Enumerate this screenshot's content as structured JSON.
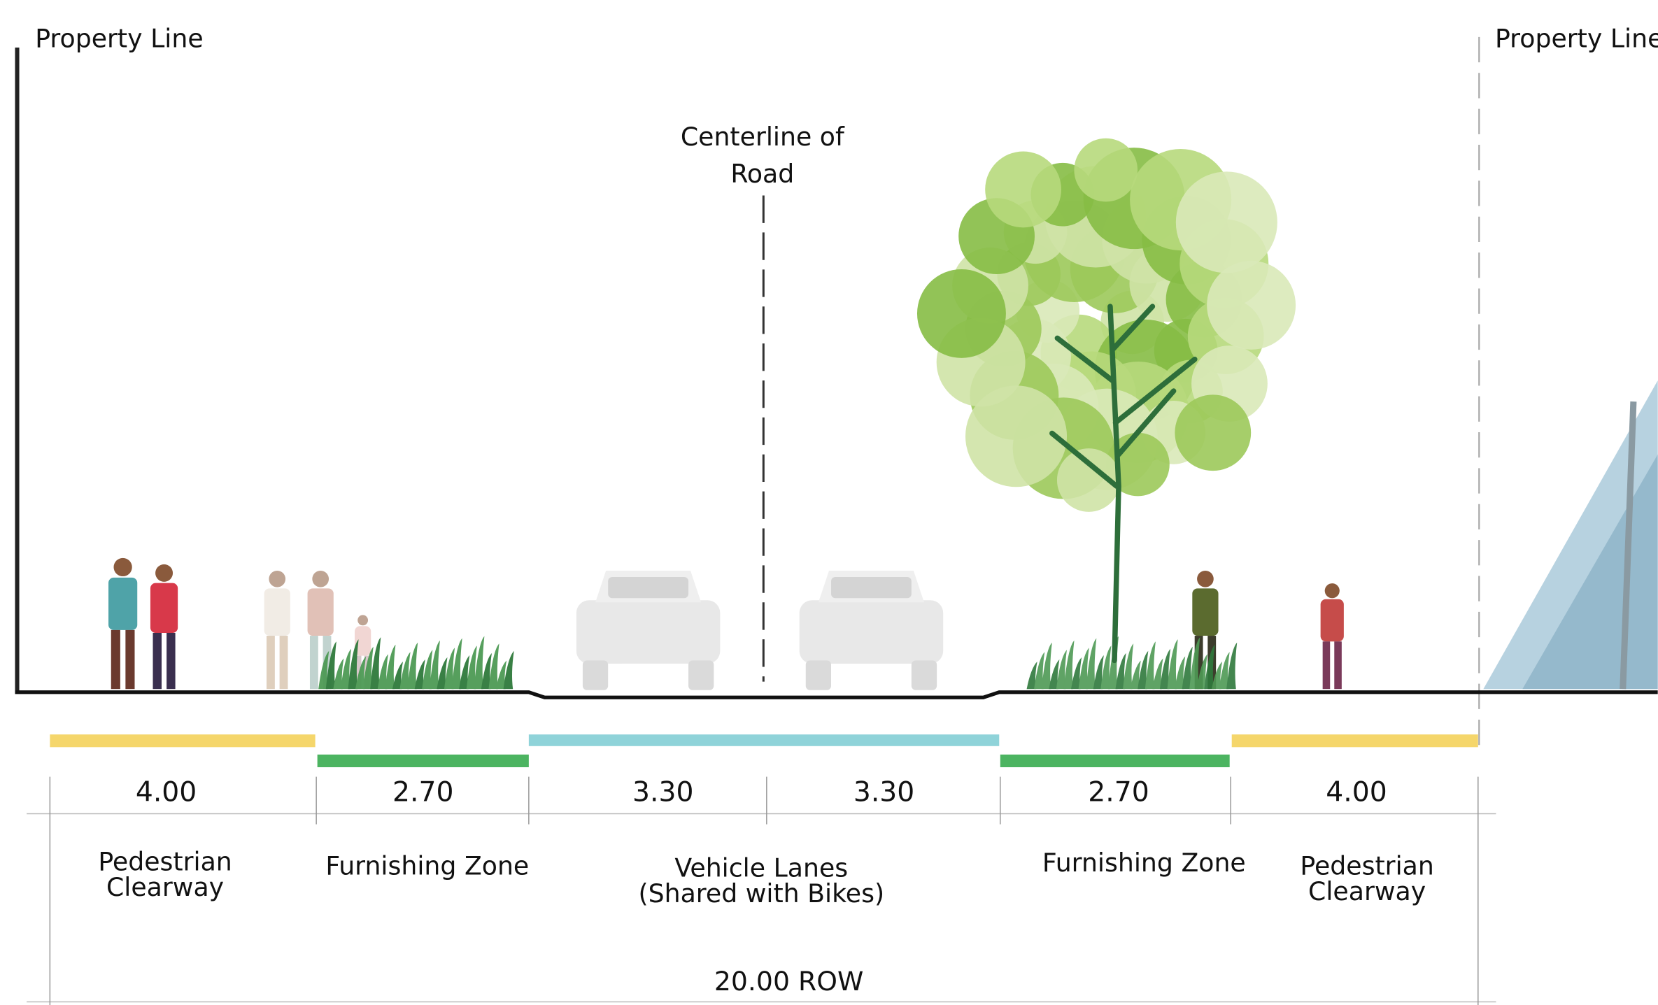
{
  "property_lines": [
    "Property Line",
    "Property Line"
  ],
  "centerline": [
    "Centerline of",
    "Road"
  ],
  "dimensions": [
    "4.00",
    "2.70",
    "3.30",
    "3.30",
    "2.70",
    "4.00"
  ],
  "zones": [
    [
      "Pedestrian",
      "Clearway"
    ],
    [
      "Furnishing Zone"
    ],
    [
      "Vehicle Lanes",
      "(Shared with Bikes)"
    ],
    [
      "Furnishing Zone"
    ],
    [
      "Pedestrian",
      "Clearway"
    ]
  ],
  "total": "20.00 ROW"
}
